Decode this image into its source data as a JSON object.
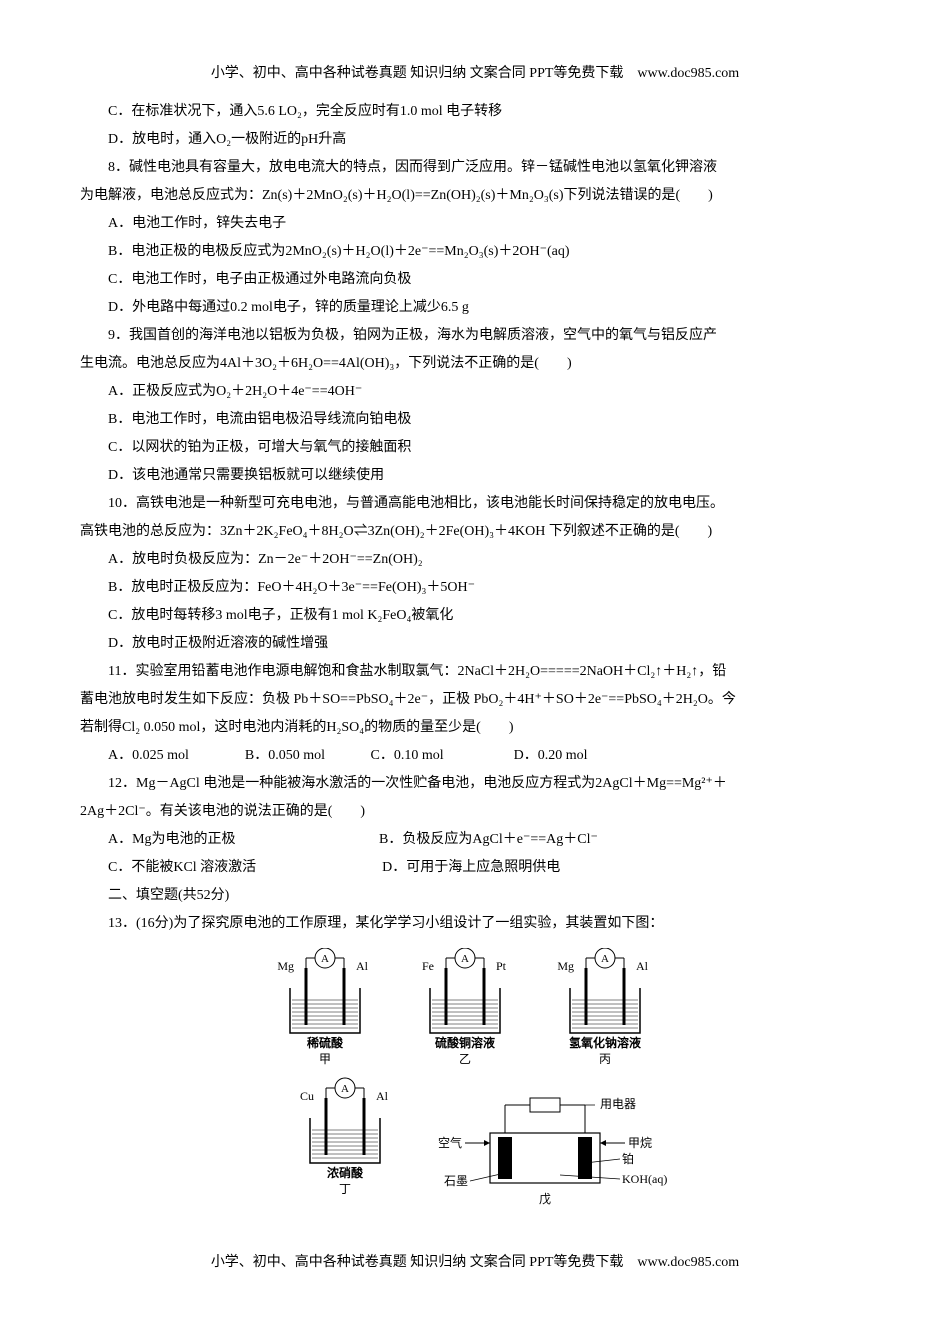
{
  "header": "小学、初中、高中各种试卷真题 知识归纳 文案合同 PPT等免费下载　www.doc985.com",
  "footer": "小学、初中、高中各种试卷真题 知识归纳 文案合同 PPT等免费下载　www.doc985.com",
  "lines": [
    "C．在标准状况下，通入5.6 LO₂，完全反应时有1.0 mol 电子转移",
    "D．放电时，通入O₂一极附近的pH升高",
    "8．碱性电池具有容量大，放电电流大的特点，因而得到广泛应用。锌－锰碱性电池以氢氧化钾溶液",
    "为电解液，电池总反应式为：Zn(s)＋2MnO₂(s)＋H₂O(l)==Zn(OH)₂(s)＋Mn₂O₃(s)下列说法错误的是(　　)",
    "A．电池工作时，锌失去电子",
    "B．电池正极的电极反应式为2MnO₂(s)＋H₂O(l)＋2e⁻==Mn₂O₃(s)＋2OH⁻(aq)",
    "C．电池工作时，电子由正极通过外电路流向负极",
    "D．外电路中每通过0.2 mol电子，锌的质量理论上减少6.5 g",
    "9．我国首创的海洋电池以铝板为负极，铂网为正极，海水为电解质溶液，空气中的氧气与铝反应产",
    "生电流。电池总反应为4Al＋3O₂＋6H₂O==4Al(OH)₃，下列说法不正确的是(　　)",
    "A．正极反应式为O₂＋2H₂O＋4e⁻==4OH⁻",
    "B．电池工作时，电流由铝电极沿导线流向铂电极",
    "C．以网状的铂为正极，可增大与氧气的接触面积",
    "D．该电池通常只需要换铝板就可以继续使用",
    "10．高铁电池是一种新型可充电电池，与普通高能电池相比，该电池能长时间保持稳定的放电电压。",
    "高铁电池的总反应为：3Zn＋2K₂FeO₄＋8H₂O⇌3Zn(OH)₂＋2Fe(OH)₃＋4KOH 下列叙述不正确的是(　　)",
    "A．放电时负极反应为：Zn－2e⁻＋2OH⁻==Zn(OH)₂",
    "B．放电时正极反应为：FeO＋4H₂O＋3e⁻==Fe(OH)₃＋5OH⁻",
    "C．放电时每转移3 mol电子，正极有1 mol K₂FeO₄被氧化",
    "D．放电时正极附近溶液的碱性增强",
    "11．实验室用铅蓄电池作电源电解饱和食盐水制取氯气：2NaCl＋2H₂O=====2NaOH＋Cl₂↑＋H₂↑，铅",
    "蓄电池放电时发生如下反应：负极 Pb＋SO==PbSO₄＋2e⁻，正极 PbO₂＋4H⁺＋SO＋2e⁻==PbSO₄＋2H₂O。今",
    "若制得Cl₂ 0.050 mol，这时电池内消耗的H₂SO₄的物质的量至少是(　　)",
    "A．0.025 mol　　　　B．0.050 mol　　　 C．0.10 mol　　　　　D．0.20 mol",
    "12．Mg－AgCl 电池是一种能被海水激活的一次性贮备电池，电池反应方程式为2AgCl＋Mg==Mg²⁺＋",
    "2Ag＋2Cl⁻。有关该电池的说法正确的是(　　)",
    "A．Mg为电池的正极　　　　　　　　　　 B．负极反应为AgCl＋e⁻==Ag＋Cl⁻",
    "C．不能被KCl 溶液激活　　　　　　　　　D．可用于海上应急照明供电",
    "二、填空题(共52分)",
    "13．(16分)为了探究原电池的工作原理，某化学学习小组设计了一组实验，其装置如下图："
  ],
  "figure": {
    "cells": [
      {
        "left": "Mg",
        "right": "Al",
        "label": "稀硫酸",
        "sub": "甲"
      },
      {
        "left": "Fe",
        "right": "Pt",
        "label": "硫酸铜溶液",
        "sub": "乙"
      },
      {
        "left": "Mg",
        "right": "Al",
        "label": "氢氧化钠溶液",
        "sub": "丙"
      },
      {
        "left": "Cu",
        "right": "Al",
        "label": "浓硝酸",
        "sub": "丁"
      }
    ],
    "fuel": {
      "top": "用电器",
      "left_in": "空气",
      "left_mat": "石墨",
      "right_in": "甲烷",
      "right_mat": "铂",
      "electrolyte": "KOH(aq)",
      "sub": "戊"
    },
    "colors": {
      "line": "#000000",
      "liquid_fill": "#ffffff",
      "hatch": "#000000"
    }
  }
}
